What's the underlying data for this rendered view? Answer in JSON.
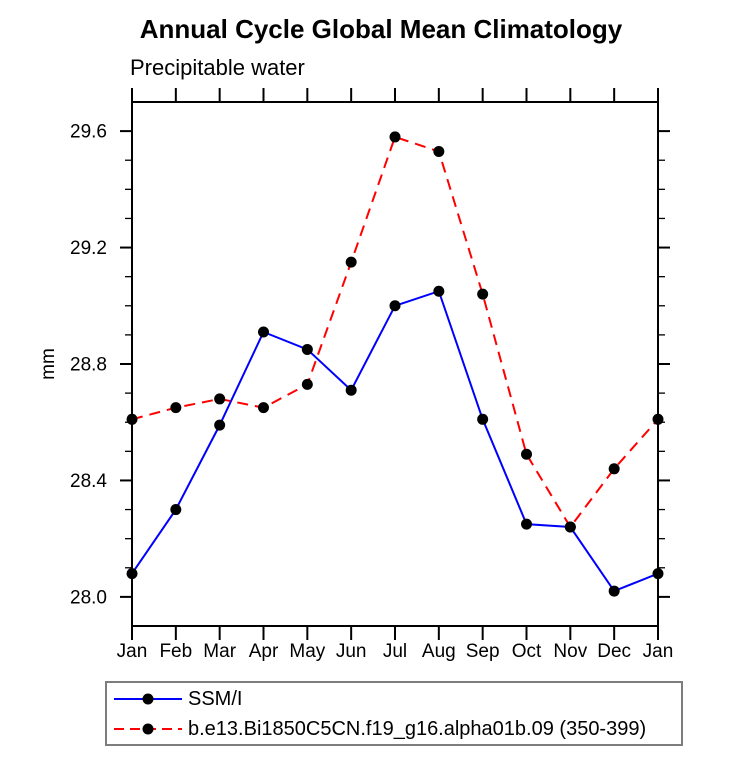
{
  "chart_data": {
    "type": "line",
    "title": "Annual Cycle Global Mean Climatology",
    "subtitle": "Precipitable water",
    "ylabel": "mm",
    "xlabel": "",
    "categories": [
      "Jan",
      "Feb",
      "Mar",
      "Apr",
      "May",
      "Jun",
      "Jul",
      "Aug",
      "Sep",
      "Oct",
      "Nov",
      "Dec",
      "Jan"
    ],
    "ylim": [
      27.9,
      29.7
    ],
    "yticks_major": [
      28.0,
      28.4,
      28.8,
      29.2,
      29.6
    ],
    "ytick_labels": [
      "28.0",
      "28.4",
      "28.8",
      "29.2",
      "29.6"
    ],
    "ytick_minor_step": 0.1,
    "grid": false,
    "legend_position": "bottom-left-box",
    "series": [
      {
        "name": "SSM/I",
        "color": "#0000ff",
        "line_style": "solid",
        "marker": "filled-circle",
        "marker_color": "#000000",
        "values": [
          28.08,
          28.3,
          28.59,
          28.91,
          28.85,
          28.71,
          29.0,
          29.05,
          28.61,
          28.25,
          28.24,
          28.02,
          28.08
        ]
      },
      {
        "name": "b.e13.Bi1850C5CN.f19_g16.alpha01b.09 (350-399)",
        "color": "#ff0000",
        "line_style": "dashed",
        "marker": "filled-circle",
        "marker_color": "#000000",
        "values": [
          28.61,
          28.65,
          28.68,
          28.65,
          28.73,
          29.15,
          29.58,
          29.53,
          29.04,
          28.49,
          28.24,
          28.44,
          28.61
        ]
      }
    ]
  }
}
